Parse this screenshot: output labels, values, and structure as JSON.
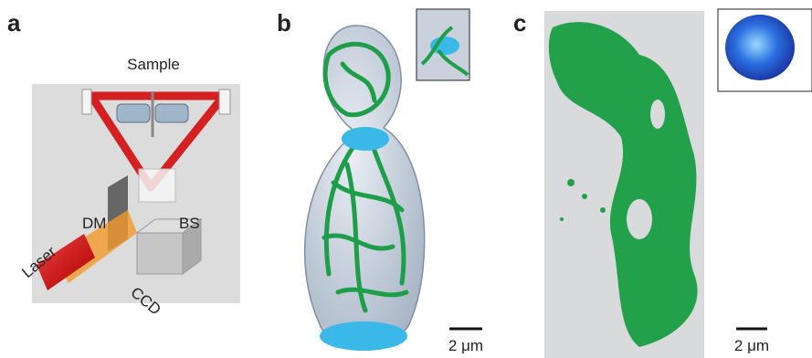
{
  "panels": [
    {
      "label": "a",
      "annotations": [
        "Sample",
        "DM",
        "BS",
        "Laser",
        "CCD"
      ]
    },
    {
      "label": "b",
      "scale_bar": "2 μm"
    },
    {
      "label": "c",
      "scale_bar": "2 μm"
    }
  ]
}
